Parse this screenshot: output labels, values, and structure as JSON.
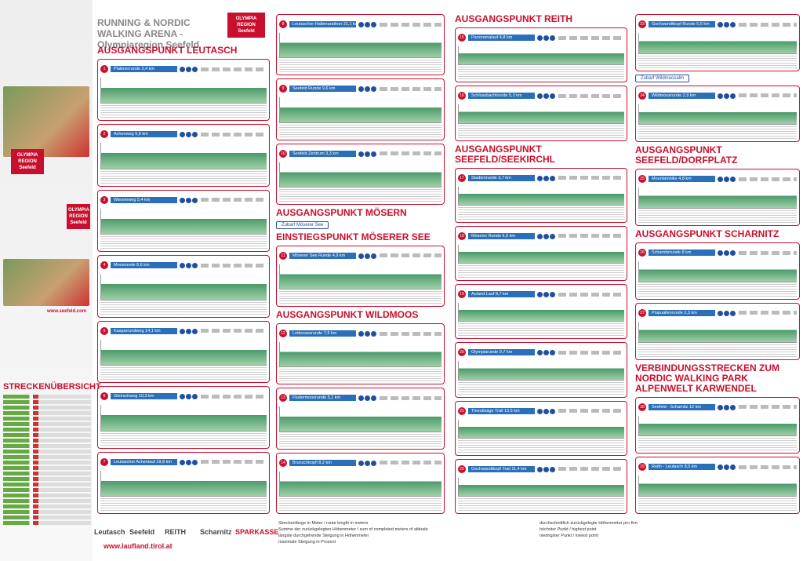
{
  "header": {
    "title": "RUNNING & NORDIC WALKING ARENA - Olympiaregion Seefeld",
    "logo": "OLYMPIA REGION",
    "logo_sub": "Seefeld",
    "website": "www.seefeld.com"
  },
  "columns": [
    [
      {
        "heading": "AUSGANGSPUNKT LEUTASCH"
      },
      {
        "number": "1",
        "name": "Plaiknerrunde 2,4 km"
      },
      {
        "number": "2",
        "name": "Achenweg 5,8 km"
      },
      {
        "number": "3",
        "name": "Wiesenweg 5,4 km"
      },
      {
        "number": "4",
        "name": "Moosrunde 8,6 km"
      },
      {
        "number": "5",
        "name": "Kasparrundweg 14,1 km"
      },
      {
        "number": "6",
        "name": "Gleirschweg 10,3 km"
      },
      {
        "number": "7",
        "name": "Leutascher Achenlauf 19,8 km"
      }
    ],
    [
      {
        "number": "8",
        "name": "Leutascher Halbmarathon 21,1 km"
      },
      {
        "number": "9",
        "name": "Seefeld Runde 9,6 km"
      },
      {
        "number": "10",
        "name": "Seefeld Zentrum 3,3 km"
      },
      {
        "heading": "AUSGANGSPUNKT MÖSERN"
      },
      {
        "tag": "Zubarf Möserer See"
      },
      {
        "heading": "EINSTIEGSPUNKT MÖSERER SEE"
      },
      {
        "number": "11",
        "name": "Möserer See Runde 4,9 km"
      },
      {
        "heading": "AUSGANGSPUNKT WILDMOOS"
      },
      {
        "number": "12",
        "name": "Lottenseerunde 7,9 km"
      },
      {
        "number": "13",
        "name": "Fludermoosrunde 5,1 km"
      },
      {
        "number": "14",
        "name": "Brunschkopfl 8,2 km"
      }
    ],
    [
      {
        "heading": "AUSGANGSPUNKT REITH"
      },
      {
        "number": "15",
        "name": "Panoramalauf 4,8 km"
      },
      {
        "number": "16",
        "name": "Schlossbachlrunde 5,3 km"
      },
      {
        "heading": "AUSGANGSPUNKT SEEFELD/SEEKIRCHL"
      },
      {
        "number": "17",
        "name": "Stadionrunde 3,7 km"
      },
      {
        "number": "18",
        "name": "Möserer Runde 6,9 km"
      },
      {
        "number": "19",
        "name": "Auland Lauf 8,7 km"
      },
      {
        "number": "20",
        "name": "Olympiarunde 9,7 km"
      },
      {
        "number": "21",
        "name": "Triendlsäge Trail 13,5 km"
      },
      {
        "number": "22",
        "name": "Gschwandtkopf Trail 11,4 km"
      }
    ],
    [
      {
        "number": "23",
        "name": "Gschwandtkopf Runde 5,5 km"
      },
      {
        "tag": "Zubarf Wildmoosalm"
      },
      {
        "number": "24",
        "name": "Wildmoosrunde 2,9 km"
      },
      {
        "heading": "AUSGANGSPUNKT SEEFELD/DORFPLATZ"
      },
      {
        "number": "25",
        "name": "Mountainbike 4,8 km"
      },
      {
        "heading": "AUSGANGSPUNKT SCHARNITZ"
      },
      {
        "number": "26",
        "name": "Scharnitzrunde 8 km"
      },
      {
        "number": "27",
        "name": "Plapuallenrunde 2,3 km"
      },
      {
        "heading": "VERBINDUNGSSTRECKEN ZUM NORDIC WALKING PARK ALPENWELT KARWENDEL"
      },
      {
        "number": "28",
        "name": "Seefeld - Scharnitz 12 km"
      },
      {
        "number": "29",
        "name": "Reith - Leutasch 8,5 km"
      }
    ]
  ],
  "overview": {
    "title": "STRECKENÜBERSICHT"
  },
  "footer": {
    "logos": [
      "Leutasch",
      "Seefeld",
      "REITH",
      "Scharnitz",
      "SPARKASSE"
    ],
    "url": "www.laufland.tirol.at",
    "legend": [
      "Streckenlänge in Meter / route length in meters",
      "Summe der zurückgelegten Höhenmeter / sum of completed meters of altitude",
      "längste durchgehende Steigung in Höhenmeter",
      "maximale Steigung in Prozent",
      "durchschnittlich zurückgelegte Höhenmeter pro Km",
      "höchster Punkt / highest point",
      "niedrigster Punkt / lowest point"
    ]
  }
}
